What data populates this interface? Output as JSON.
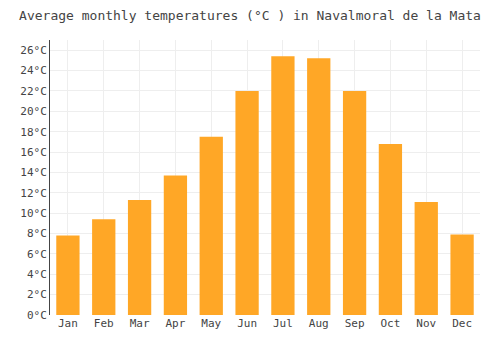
{
  "chart_data": {
    "type": "bar",
    "title": "Average monthly temperatures (°C ) in Navalmoral de la Mata",
    "categories": [
      "Jan",
      "Feb",
      "Mar",
      "Apr",
      "May",
      "Jun",
      "Jul",
      "Aug",
      "Sep",
      "Oct",
      "Nov",
      "Dec"
    ],
    "values": [
      7.8,
      9.4,
      11.3,
      13.7,
      17.5,
      22.0,
      25.4,
      25.2,
      22.0,
      16.8,
      11.1,
      7.9
    ],
    "color": "#FFA726",
    "ylim": [
      0,
      27
    ],
    "yticks": [
      {
        "value": 0,
        "label": "0°C"
      },
      {
        "value": 2,
        "label": "2°C"
      },
      {
        "value": 4,
        "label": "4°C"
      },
      {
        "value": 6,
        "label": "6°C"
      },
      {
        "value": 8,
        "label": "8°C"
      },
      {
        "value": 10,
        "label": "10°C"
      },
      {
        "value": 12,
        "label": "12°C"
      },
      {
        "value": 14,
        "label": "14°C"
      },
      {
        "value": 16,
        "label": "16°C"
      },
      {
        "value": 18,
        "label": "18°C"
      },
      {
        "value": 20,
        "label": "20°C"
      },
      {
        "value": 22,
        "label": "22°C"
      },
      {
        "value": 24,
        "label": "24°C"
      },
      {
        "value": 26,
        "label": "26°C"
      }
    ],
    "grid": true
  }
}
